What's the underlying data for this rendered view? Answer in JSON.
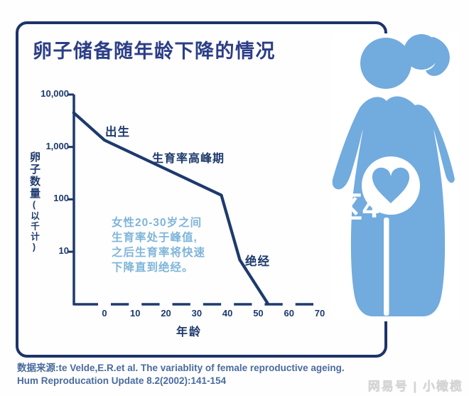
{
  "chart_data": {
    "type": "line",
    "title": "卵子储备随年龄下降的情况",
    "xlabel": "年龄",
    "ylabel": "卵子数量（以千计）",
    "ylabel_main": "卵子数量",
    "ylabel_sub": "(以千计)",
    "y_scale": "log",
    "ylim": [
      1,
      10000
    ],
    "xlim_age": [
      -10,
      72
    ],
    "x_ticks": [
      0,
      10,
      20,
      30,
      40,
      50,
      60,
      70
    ],
    "y_ticks": [
      {
        "label": "10,000",
        "value": 10000
      },
      {
        "label": "1,000",
        "value": 1000
      },
      {
        "label": "100",
        "value": 100
      },
      {
        "label": "10",
        "value": 10
      }
    ],
    "points": [
      {
        "age": -10,
        "value": 4500
      },
      {
        "age": 0,
        "value": 1350
      },
      {
        "age": 38,
        "value": 120
      },
      {
        "age": 44,
        "value": 7
      },
      {
        "age": 53,
        "value": 1.05
      }
    ],
    "annotations": {
      "birth": "出生",
      "peak": "生育率高峰期",
      "menopause": "绝经",
      "note_lines": [
        "女性20-30岁之间",
        "生育率处于峰值,",
        "之后生育率将快速",
        "下降直到绝经。"
      ]
    },
    "grid": false,
    "legend": "none"
  },
  "source": {
    "line1": "数据来源:te Velde,E.R.et al. The variablity of female reproductive ageing.",
    "line2": "Hum Reproducation Update 8.2(2002):141-154"
  },
  "watermarks": {
    "center": "区4",
    "footer": "网易号 | 小橄榄"
  },
  "figure": {
    "description": "pregnant-woman-with-heart"
  },
  "colors": {
    "navy-frame": "#1d336b",
    "navy-title": "#2b3e87",
    "navy-line": "#1e3a6d",
    "blue-figure": "#72abde",
    "blue-note": "#7fb5da",
    "blue-source": "#4a6b9e",
    "gray-watermark": "#d4d4d4"
  }
}
